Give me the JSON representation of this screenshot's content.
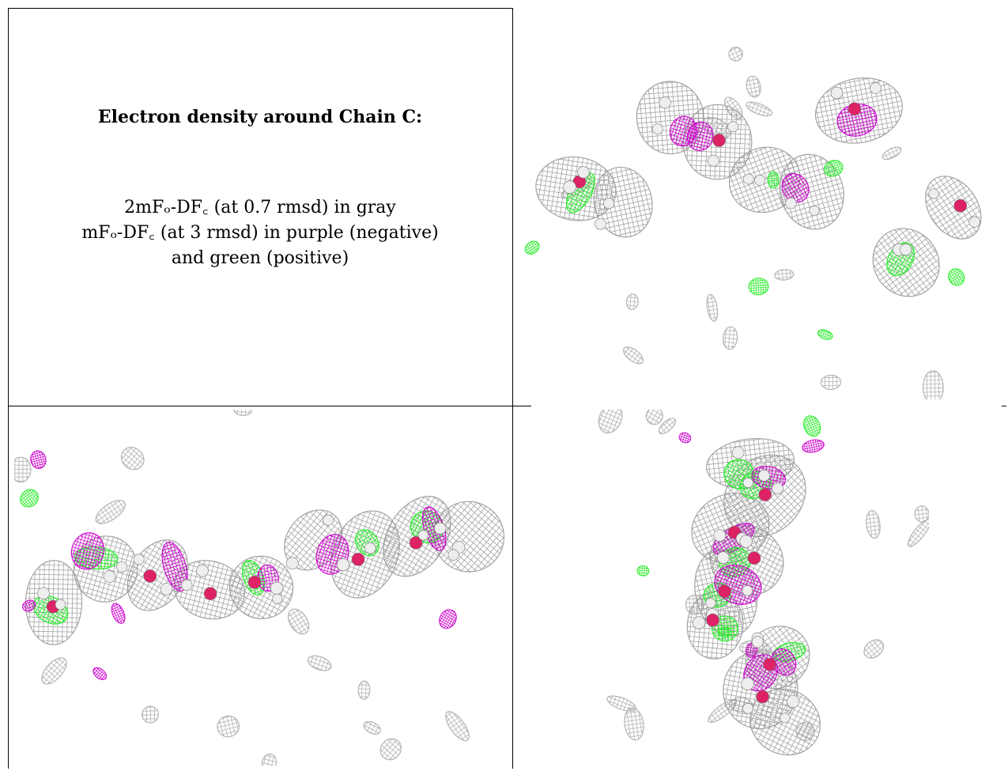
{
  "caption": {
    "title": "Electron density around Chain C:",
    "lines": [
      "2mFₒ-DF꜀ (at 0.7 rmsd) in gray",
      "mFₒ-DF꜀ (at 3 rmsd) in purple (negative)",
      "and green (positive)"
    ]
  },
  "panels": [
    {
      "view": "top-right",
      "icon": "electron-density-mesh"
    },
    {
      "view": "bottom-left",
      "icon": "electron-density-mesh"
    },
    {
      "view": "bottom-right",
      "icon": "electron-density-mesh"
    }
  ],
  "colors": {
    "gray_mesh": "#9a9a9a",
    "negative": "#cc00cc",
    "positive": "#22ee22",
    "atom_white": "#eeeeee",
    "atom_red": "#dd2266"
  }
}
